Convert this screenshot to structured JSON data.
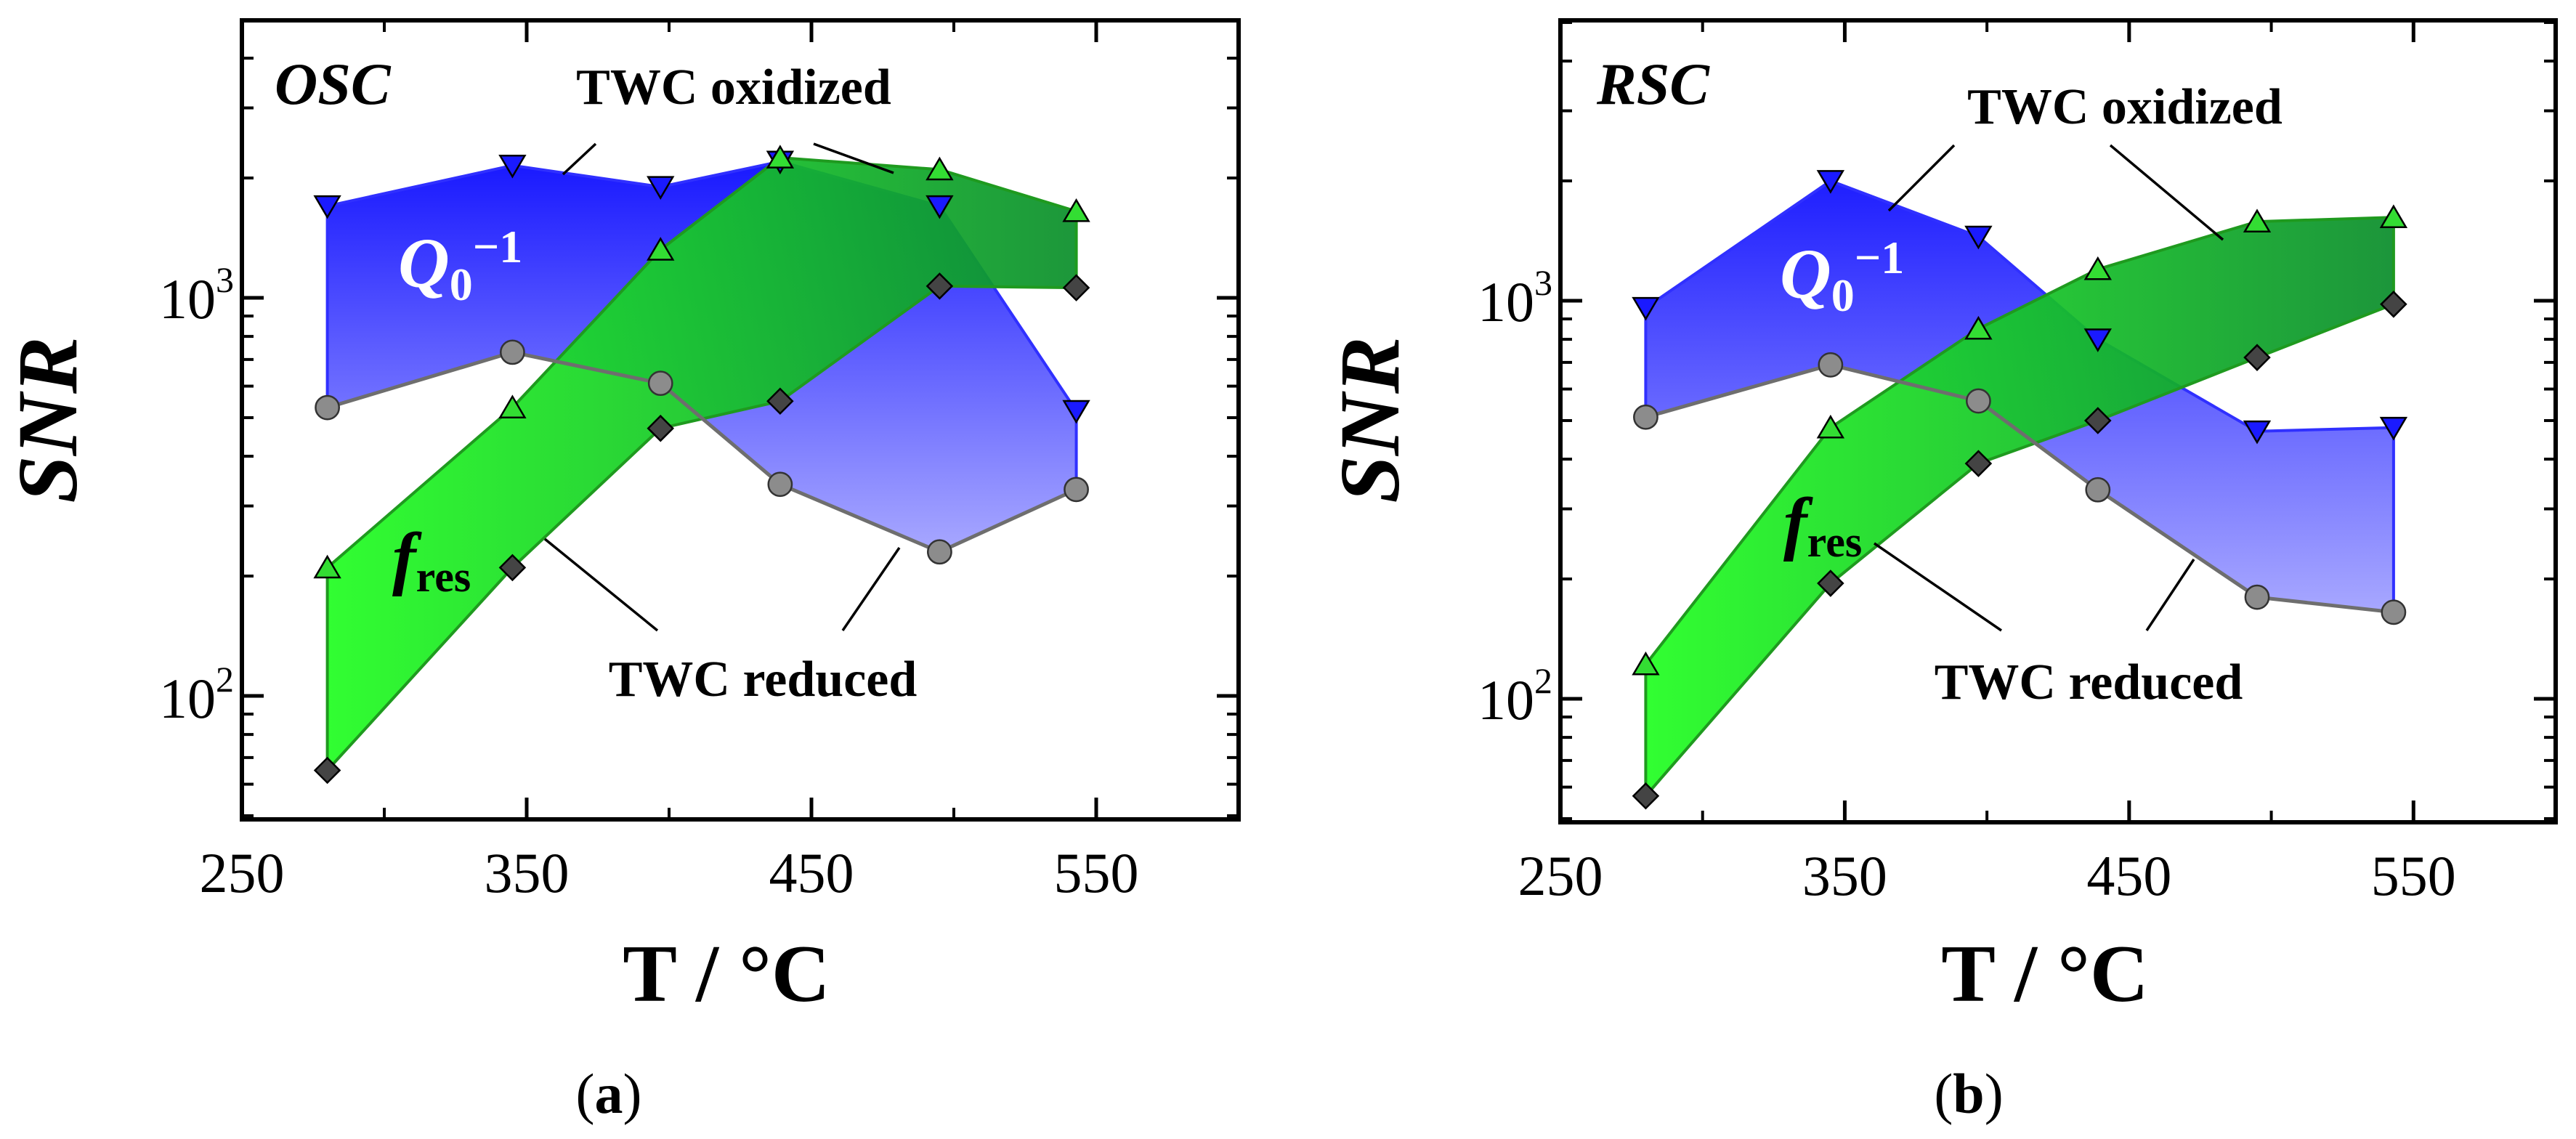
{
  "figure": {
    "colors": {
      "blue": "#1a1aff",
      "blue_light": "#a8a8ff",
      "green": "#22ff22",
      "green_dark": "#0a8a2a",
      "gray_edge": "#6e6e6e",
      "oxidized_marker_green": "#33dd33",
      "reduced_marker": "#444444",
      "circle_marker": "#8c8c8c"
    }
  },
  "chart_data": [
    {
      "id": "a",
      "type": "area",
      "panel_label": "a",
      "title_label": "OSC",
      "xlabel": "T / °C",
      "ylabel": "SNR",
      "xlim": [
        250,
        600
      ],
      "ylim": [
        50,
        5000
      ],
      "yscale": "log",
      "xticks": [
        250,
        350,
        450,
        550
      ],
      "ytick_labels": [
        {
          "base": "10",
          "exp": "3",
          "value": 1000
        },
        {
          "base": "10",
          "exp": "2",
          "value": 100
        }
      ],
      "x": [
        280,
        345,
        397,
        439,
        495,
        543
      ],
      "series": [
        {
          "name": "Q0-1 TWC oxidized",
          "marker": "triangle-down",
          "values": [
            1700,
            2150,
            1900,
            2200,
            1700,
            520
          ]
        },
        {
          "name": "Q0-1 TWC reduced",
          "marker": "circle",
          "values": [
            530,
            730,
            610,
            340,
            230,
            330
          ]
        },
        {
          "name": "fres TWC oxidized",
          "marker": "triangle-up",
          "values": [
            210,
            530,
            1320,
            2250,
            2100,
            1650
          ]
        },
        {
          "name": "fres TWC reduced",
          "marker": "diamond",
          "values": [
            65,
            210,
            470,
            550,
            1070,
            1060
          ]
        }
      ],
      "annotations": {
        "oxidized": "TWC oxidized",
        "reduced": "TWC reduced",
        "q_base": "Q",
        "q_sub": "0",
        "q_sup": "−1",
        "f_base": "f",
        "f_sub": "res"
      }
    },
    {
      "id": "b",
      "type": "area",
      "panel_label": "b",
      "title_label": "RSC",
      "xlabel": "T / °C",
      "ylabel": "SNR",
      "xlim": [
        250,
        600
      ],
      "ylim": [
        50,
        5000
      ],
      "yscale": "log",
      "xticks": [
        250,
        350,
        450,
        550
      ],
      "ytick_labels": [
        {
          "base": "10",
          "exp": "3",
          "value": 1000
        },
        {
          "base": "10",
          "exp": "2",
          "value": 100
        }
      ],
      "x": [
        280,
        345,
        397,
        439,
        495,
        543
      ],
      "series": [
        {
          "name": "Q0-1 TWC oxidized",
          "marker": "triangle-down",
          "values": [
            960,
            2000,
            1450,
            800,
            470,
            480
          ]
        },
        {
          "name": "Q0-1 TWC reduced",
          "marker": "circle",
          "values": [
            510,
            690,
            560,
            335,
            180,
            165
          ]
        },
        {
          "name": "fres TWC oxidized",
          "marker": "triangle-up",
          "values": [
            122,
            480,
            850,
            1200,
            1580,
            1620
          ]
        },
        {
          "name": "fres TWC reduced",
          "marker": "diamond",
          "values": [
            57,
            195,
            390,
            500,
            720,
            980
          ]
        }
      ],
      "annotations": {
        "oxidized": "TWC oxidized",
        "reduced": "TWC reduced",
        "q_base": "Q",
        "q_sub": "0",
        "q_sup": "−1",
        "f_base": "f",
        "f_sub": "res"
      }
    }
  ]
}
